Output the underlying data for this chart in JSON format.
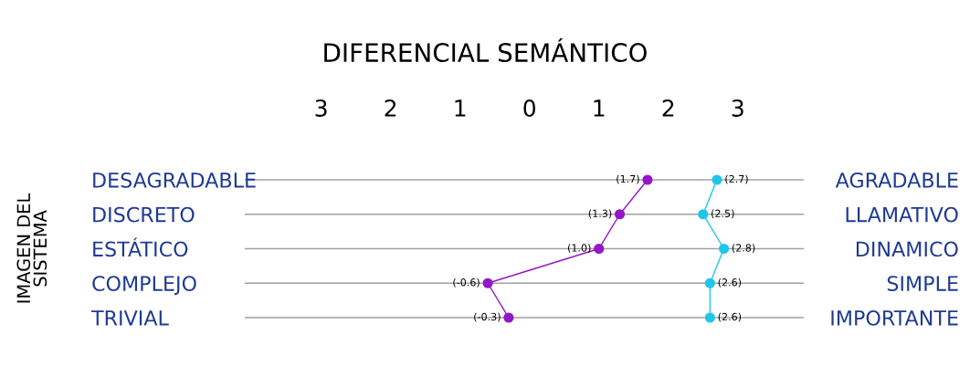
{
  "chart_data": {
    "type": "line",
    "orientation": "horizontal",
    "title": "DIFERENCIAL SEMÁNTICO",
    "ylabel": "IMAGEN DEL\nSISTEMA",
    "categories": [
      "DESAGRADABLE",
      "DISCRETO",
      "ESTÁTICO",
      "COMPLEJO",
      "TRIVIAL"
    ],
    "y2_categories": [
      "AGRADABLE",
      "LLAMATIVO",
      "DINAMICO",
      "SIMPLE",
      "IMPORTANTE"
    ],
    "xlim": [
      -4.1,
      3.95
    ],
    "xticks": [
      {
        "value": -3,
        "label": "3"
      },
      {
        "value": -2,
        "label": "2"
      },
      {
        "value": -1,
        "label": "1"
      },
      0,
      1,
      2,
      3
    ],
    "series": [
      {
        "color": "#9515c8",
        "values": [
          1.7,
          1.3,
          1.0,
          -0.6,
          -0.3
        ],
        "value_labels": [
          "(1.7)",
          "(1.3)",
          "(1.0)",
          "(-0.6)",
          "(-0.3)"
        ]
      },
      {
        "color": "#1ec6ea",
        "values": [
          2.7,
          2.5,
          2.8,
          2.6,
          2.6
        ],
        "value_labels": [
          "(2.7)",
          "(2.5)",
          "(2.8)",
          "(2.6)",
          "(2.6)"
        ]
      }
    ],
    "grid": "y",
    "marker": "circle",
    "line_style": "solid",
    "legend": false
  }
}
